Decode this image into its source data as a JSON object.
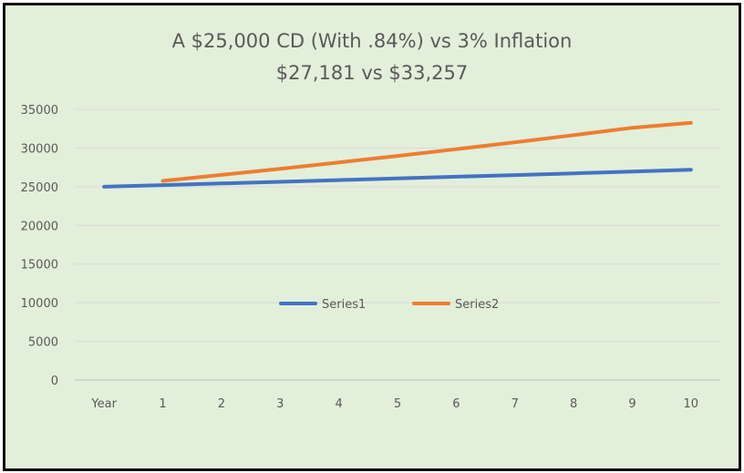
{
  "chart_data": {
    "type": "line",
    "title": "A $25,000 CD (With .84%)  vs 3% Inflation",
    "subtitle": "$27,181 vs $33,257",
    "categories": [
      "Year",
      "1",
      "2",
      "3",
      "4",
      "5",
      "6",
      "7",
      "8",
      "9",
      "10"
    ],
    "ylim": [
      0,
      35000
    ],
    "yticks": [
      0,
      5000,
      10000,
      15000,
      20000,
      25000,
      30000,
      35000
    ],
    "grid": true,
    "legend_position": "center",
    "series": [
      {
        "name": "Series1",
        "color": "#4472c4",
        "values": [
          25000,
          25210,
          25422,
          25635,
          25851,
          26068,
          26287,
          26508,
          26730,
          26955,
          27181
        ]
      },
      {
        "name": "Series2",
        "color": "#ed7d31",
        "values": [
          null,
          25750,
          26523,
          27318,
          28138,
          28982,
          29851,
          30747,
          31669,
          32619,
          33257
        ]
      }
    ]
  }
}
